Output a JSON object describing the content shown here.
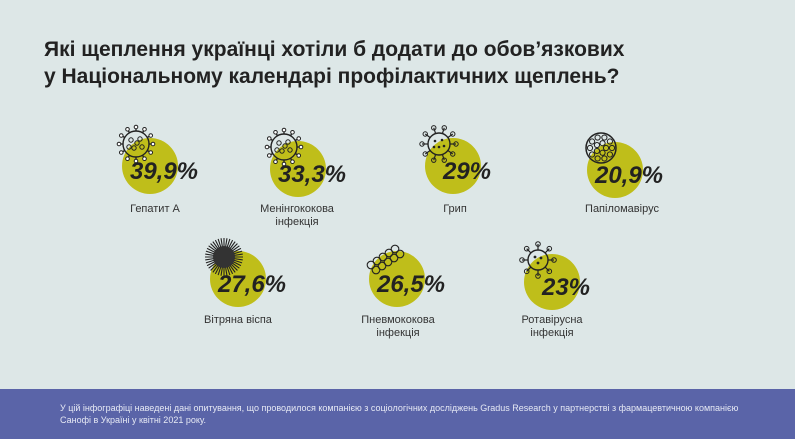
{
  "title_lines": [
    "Які щеплення українці хотіли б додати до обов’язкових",
    "у Національному календарі профілактичних щеплень?"
  ],
  "colors": {
    "circle": "#bfbe1a",
    "background": "#dde7e7",
    "footer": "#5a64a8",
    "text": "#222222"
  },
  "chart_data": {
    "type": "bar",
    "unit": "%",
    "categories": [
      "Гепатит А",
      "Менінгококова інфекція",
      "Грип",
      "Папіломавірус",
      "Вітряна віспа",
      "Пневмококова інфекція",
      "Ротавірусна інфекція"
    ],
    "values": [
      39.9,
      33.3,
      29,
      20.9,
      27.6,
      26.5,
      23
    ],
    "value_labels": [
      "39,9%",
      "33,3%",
      "29%",
      "20,9%",
      "27,6%",
      "26,5%",
      "23%"
    ],
    "label_lines": [
      [
        "Гепатит А"
      ],
      [
        "Менінгококова",
        "інфекція"
      ],
      [
        "Грип"
      ],
      [
        "Папіломавірус"
      ],
      [
        "Вітряна віспа"
      ],
      [
        "Пневмококова",
        "інфекція"
      ],
      [
        "Ротавірусна",
        "інфекція"
      ]
    ],
    "icons": [
      "spiky-virus-icon",
      "spiky-virus-icon",
      "influenza-virus-icon",
      "papilloma-virus-icon",
      "varicella-virus-icon",
      "pneumococcus-chain-icon",
      "rotavirus-icon"
    ]
  },
  "footer": {
    "text": "У цій інфографіці наведені дані опитування, що проводилося компанією з соціологічних досліджень Gradus Research у партнерстві з фармацевтичною компанією Санофі в Україні у квітні 2021 року."
  }
}
